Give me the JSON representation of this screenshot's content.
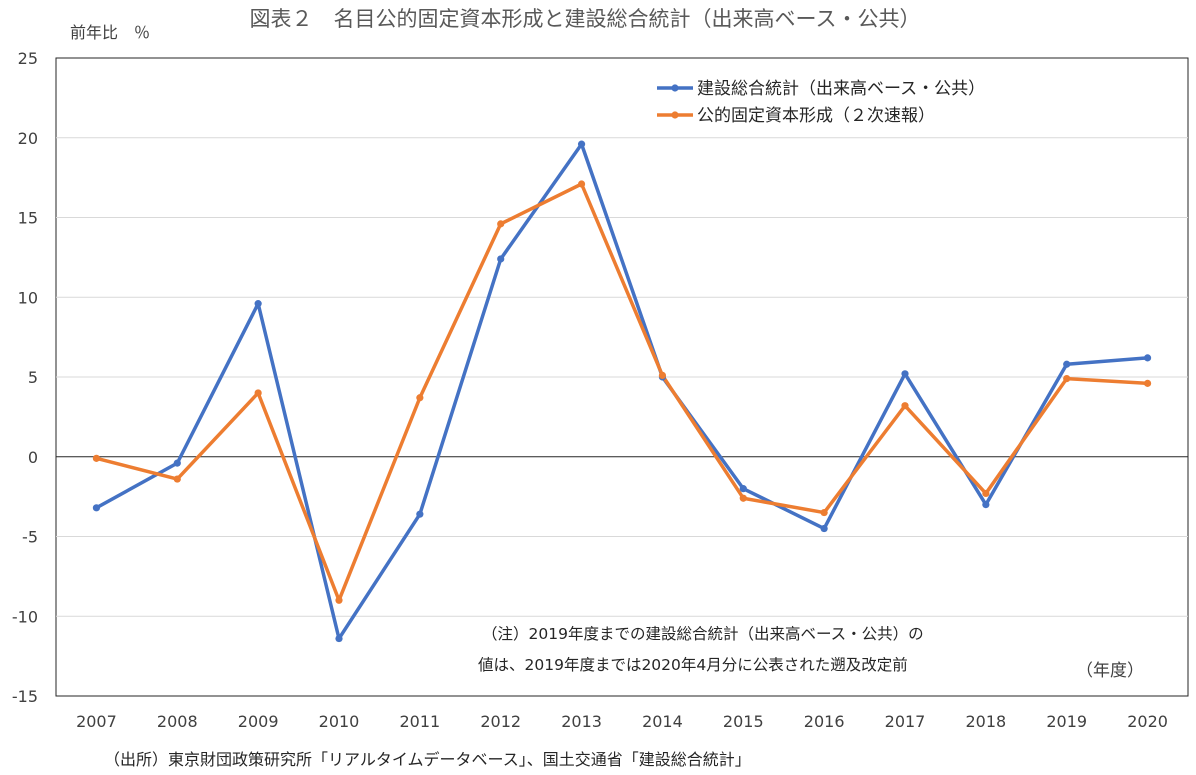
{
  "chart_data": {
    "type": "line",
    "title": "図表２　名目公的固定資本形成と建設総合統計（出来高ベース・公共）",
    "ylabel": "前年比　％",
    "xlabel": "（年度）",
    "ylim": [
      -15,
      25
    ],
    "yticks": [
      -15,
      -10,
      -5,
      0,
      5,
      10,
      15,
      20,
      25
    ],
    "categories": [
      "2007",
      "2008",
      "2009",
      "2010",
      "2011",
      "2012",
      "2013",
      "2014",
      "2015",
      "2016",
      "2017",
      "2018",
      "2019",
      "2020"
    ],
    "grid": true,
    "legend_position": "top-right",
    "series": [
      {
        "name": "建設総合統計（出来高ベース・公共）",
        "color": "#4472c4",
        "values": [
          -3.2,
          -0.4,
          9.6,
          -11.4,
          -3.6,
          12.4,
          19.6,
          5.0,
          -2.0,
          -4.5,
          5.2,
          -3.0,
          5.8,
          6.2
        ]
      },
      {
        "name": "公的固定資本形成（２次速報）",
        "color": "#ed7d31",
        "values": [
          -0.1,
          -1.4,
          4.0,
          -9.0,
          3.7,
          14.6,
          17.1,
          5.1,
          -2.6,
          -3.5,
          3.2,
          -2.3,
          4.9,
          4.6
        ]
      }
    ],
    "annotations": [
      "（注）2019年度までの建設総合統計（出来高ベース・公共）の",
      "値は、2019年度までは2020年4月分に公表された遡及改定前"
    ]
  },
  "source": "（出所）東京財団政策研究所「リアルタイムデータベース」、国土交通省「建設総合統計」"
}
